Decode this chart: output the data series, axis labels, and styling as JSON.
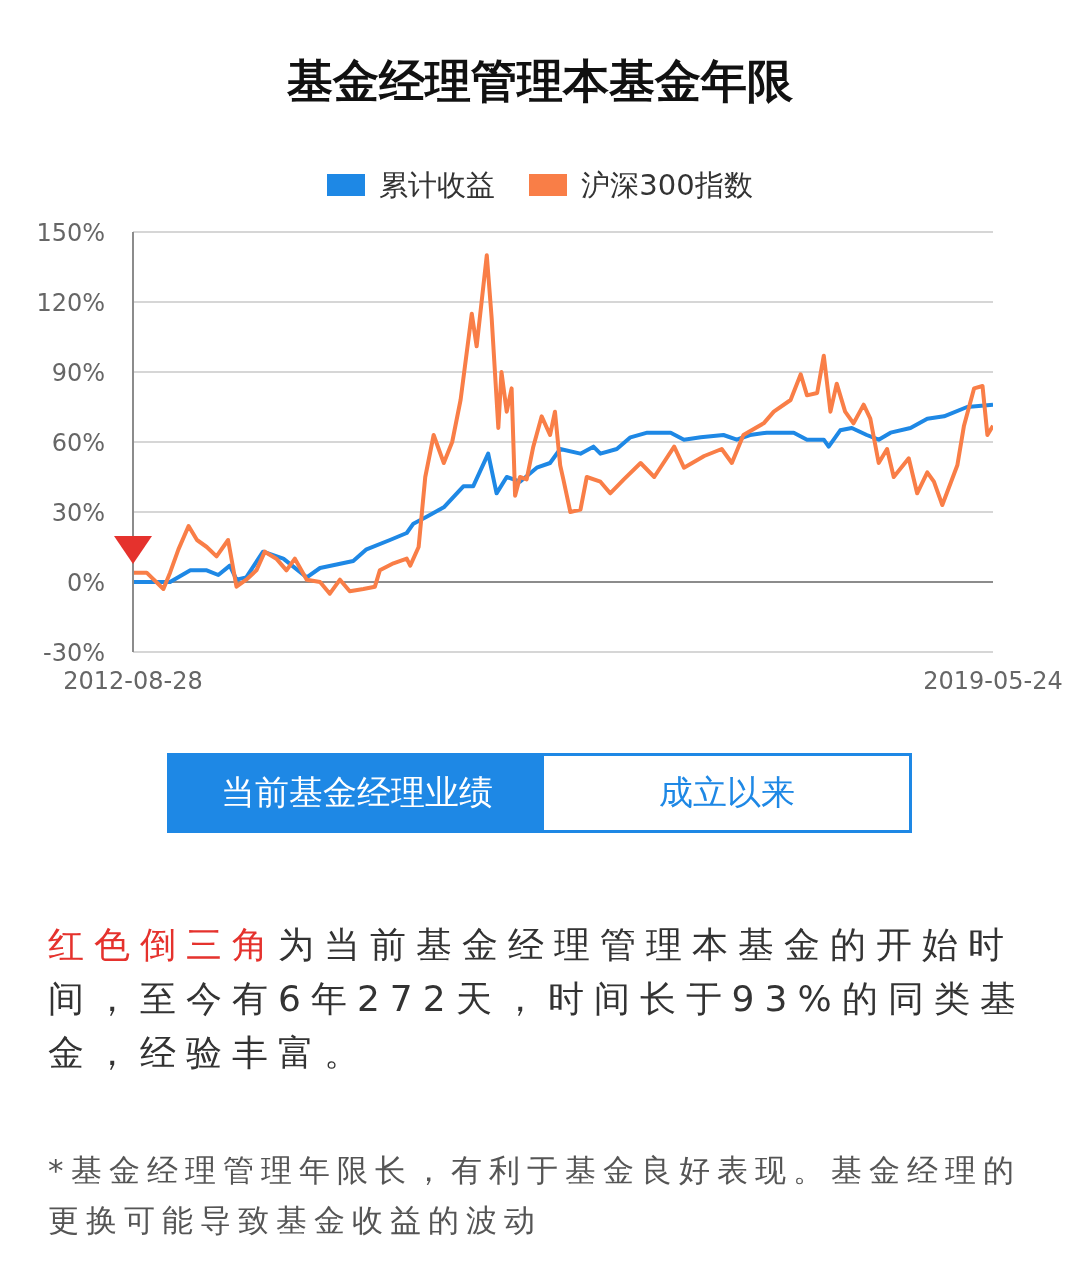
{
  "chart_data": {
    "type": "line",
    "title": "基金经理管理本基金年限",
    "xlim": [
      "2012-08-28",
      "2019-05-24"
    ],
    "xticks": [
      "2012-08-28",
      "2019-05-24"
    ],
    "ylim": [
      -30,
      150
    ],
    "yticks": [
      {
        "value": -30,
        "label": "-30%"
      },
      {
        "value": 0,
        "label": "0%"
      },
      {
        "value": 30,
        "label": "30%"
      },
      {
        "value": 60,
        "label": "60%"
      },
      {
        "value": 90,
        "label": "90%"
      },
      {
        "value": 120,
        "label": "120%"
      },
      {
        "value": 150,
        "label": "150%"
      }
    ],
    "grid": "y",
    "legend": "top",
    "marker": "none",
    "line_style": "solid",
    "ref_lines": [
      {
        "axis": "y",
        "value": 0,
        "color": "#8c8c8c"
      }
    ],
    "series": [
      {
        "name": "累计收益",
        "color": "#1e88e5",
        "x": [
          "2012-08-28",
          "2012-12-12",
          "2013-02-08",
          "2013-03-27",
          "2013-04-29",
          "2013-06-01",
          "2013-06-20",
          "2013-07-18",
          "2013-09-04",
          "2013-11-01",
          "2014-01-07",
          "2014-02-14",
          "2014-05-20",
          "2014-06-27",
          "2014-09-02",
          "2014-10-20",
          "2014-11-08",
          "2014-12-16",
          "2015-02-03",
          "2015-03-31",
          "2015-04-28",
          "2015-06-10",
          "2015-07-04",
          "2015-08-02",
          "2015-09-09",
          "2015-10-27",
          "2015-12-04",
          "2016-01-02",
          "2016-02-29",
          "2016-04-06",
          "2016-04-26",
          "2016-06-12",
          "2016-07-21",
          "2016-09-07",
          "2016-11-13",
          "2016-12-21",
          "2017-02-07",
          "2017-04-13",
          "2017-05-21",
          "2017-06-28",
          "2017-08-15",
          "2017-10-31",
          "2017-12-08",
          "2018-01-25",
          "2018-02-08",
          "2018-03-13",
          "2018-04-15",
          "2018-05-28",
          "2018-07-01",
          "2018-08-04",
          "2018-09-30",
          "2018-11-17",
          "2019-01-04",
          "2019-03-11",
          "2019-05-24"
        ],
        "values": [
          0,
          0,
          5,
          5,
          3,
          7,
          1,
          2,
          13,
          10,
          2,
          6,
          9,
          14,
          18,
          21,
          25,
          28,
          32,
          41,
          41,
          55,
          38,
          45,
          43,
          49,
          51,
          57,
          55,
          58,
          55,
          57,
          62,
          64,
          64,
          61,
          62,
          63,
          61,
          63,
          64,
          64,
          61,
          61,
          58,
          65,
          66,
          63,
          61,
          64,
          66,
          70,
          71,
          75,
          76
        ]
      },
      {
        "name": "沪深300指数",
        "color": "#f97e47",
        "x": [
          "2012-08-28",
          "2012-10-06",
          "2012-11-23",
          "2012-12-12",
          "2013-01-05",
          "2013-02-03",
          "2013-02-27",
          "2013-03-27",
          "2013-04-24",
          "2013-05-27",
          "2013-06-20",
          "2013-07-18",
          "2013-08-16",
          "2013-09-09",
          "2013-10-12",
          "2013-11-10",
          "2013-12-04",
          "2014-01-07",
          "2014-02-14",
          "2014-03-14",
          "2014-04-12",
          "2014-05-10",
          "2014-06-18",
          "2014-07-21",
          "2014-08-04",
          "2014-09-12",
          "2014-10-20",
          "2014-10-30",
          "2014-11-23",
          "2014-12-12",
          "2015-01-05",
          "2015-02-03",
          "2015-02-27",
          "2015-03-23",
          "2015-04-24",
          "2015-05-08",
          "2015-06-06",
          "2015-06-20",
          "2015-07-09",
          "2015-07-18",
          "2015-08-02",
          "2015-08-16",
          "2015-08-26",
          "2015-09-09",
          "2015-09-28",
          "2015-10-17",
          "2015-11-10",
          "2015-12-04",
          "2015-12-18",
          "2016-01-02",
          "2016-01-11",
          "2016-01-31",
          "2016-02-29",
          "2016-03-18",
          "2016-04-26",
          "2016-05-24",
          "2016-07-02",
          "2016-08-19",
          "2016-09-27",
          "2016-11-23",
          "2016-12-21",
          "2017-02-17",
          "2017-04-08",
          "2017-05-07",
          "2017-06-09",
          "2017-08-06",
          "2017-09-04",
          "2017-10-22",
          "2017-11-20",
          "2017-12-08",
          "2018-01-06",
          "2018-01-25",
          "2018-02-13",
          "2018-03-03",
          "2018-03-27",
          "2018-04-20",
          "2018-05-19",
          "2018-06-07",
          "2018-07-01",
          "2018-07-25",
          "2018-08-13",
          "2018-09-25",
          "2018-10-19",
          "2018-11-17",
          "2018-12-06",
          "2018-12-30",
          "2019-02-11",
          "2019-03-02",
          "2019-03-31",
          "2019-04-24",
          "2019-05-08",
          "2019-05-24"
        ],
        "values": [
          4,
          4,
          -3,
          4,
          14,
          24,
          18,
          15,
          11,
          18,
          -2,
          1,
          5,
          13,
          10,
          5,
          10,
          1,
          0,
          -5,
          1,
          -4,
          -3,
          -2,
          5,
          8,
          10,
          7,
          15,
          45,
          63,
          51,
          60,
          78,
          115,
          101,
          140,
          113,
          66,
          90,
          73,
          83,
          37,
          45,
          44,
          58,
          71,
          63,
          73,
          50,
          44,
          30,
          31,
          45,
          43,
          38,
          44,
          51,
          45,
          58,
          49,
          54,
          57,
          51,
          63,
          68,
          73,
          78,
          89,
          80,
          81,
          97,
          73,
          85,
          73,
          68,
          76,
          70,
          51,
          57,
          45,
          53,
          38,
          47,
          43,
          33,
          50,
          67,
          83,
          84,
          63,
          67
        ]
      }
    ],
    "annotations": [
      "当前基金经理业绩",
      "成立以来",
      "红色倒三角",
      "为当前基金经理管理本基金的开始时间，至今有6年272天，时间长于93%的同类基金，经验丰富。",
      "*基金经理管理年限长，有利于基金良好表现。基金经理的更换可能导致基金收益的波动"
    ]
  }
}
